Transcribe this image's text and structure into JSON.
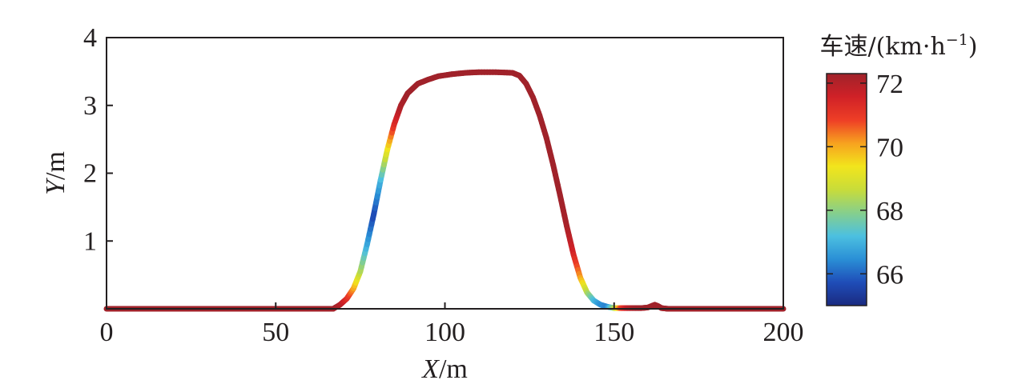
{
  "chart_data": {
    "type": "line",
    "xlabel_var": "X",
    "xlabel_unit": "/m",
    "ylabel_var": "Y",
    "ylabel_unit": "/m",
    "xlim": [
      0,
      200
    ],
    "ylim": [
      0,
      4
    ],
    "xticks": [
      0,
      50,
      100,
      150,
      200
    ],
    "yticks": [
      1,
      2,
      3,
      4
    ],
    "colorbar": {
      "title": "车速/(km·h",
      "title_sup": "−1",
      "title_end": ")",
      "range": [
        65,
        72.3
      ],
      "ticks": [
        66,
        68,
        70,
        72
      ],
      "colormap": [
        "#1a2a80",
        "#1f4db8",
        "#2a8fd6",
        "#4cc0e0",
        "#86cf8c",
        "#c8dc3a",
        "#f2e51c",
        "#f7a21f",
        "#ee3e26",
        "#d02127",
        "#a0222a"
      ]
    },
    "series": [
      {
        "x": [
          0,
          30,
          60,
          67,
          69,
          71,
          73,
          75,
          77,
          79,
          81,
          83,
          85,
          87,
          89,
          92,
          95,
          98,
          102,
          106,
          110,
          115,
          120,
          122,
          124,
          126,
          128,
          130,
          132,
          134,
          136,
          138,
          140,
          142,
          144,
          146,
          148,
          150,
          152,
          154,
          156,
          158,
          160,
          162,
          163,
          164,
          166,
          170,
          180,
          190,
          200
        ],
        "y": [
          0,
          0,
          0,
          0,
          0.06,
          0.15,
          0.3,
          0.55,
          0.95,
          1.4,
          1.9,
          2.35,
          2.72,
          3.0,
          3.18,
          3.32,
          3.38,
          3.43,
          3.46,
          3.48,
          3.49,
          3.49,
          3.48,
          3.44,
          3.32,
          3.12,
          2.85,
          2.52,
          2.12,
          1.68,
          1.22,
          0.8,
          0.46,
          0.24,
          0.12,
          0.06,
          0.03,
          0.01,
          0.01,
          0.01,
          0.01,
          0.01,
          0.02,
          0.06,
          0.04,
          0.01,
          0.0,
          0.0,
          0.0,
          0.0,
          0.0
        ],
        "speed": [
          72.3,
          72.3,
          72.3,
          72.3,
          72.1,
          71.3,
          70.2,
          68.5,
          66.9,
          65.6,
          67.0,
          69.2,
          71.2,
          72.1,
          72.3,
          72.3,
          72.3,
          72.3,
          72.3,
          72.3,
          72.3,
          72.3,
          72.3,
          72.3,
          72.3,
          72.3,
          72.3,
          72.3,
          72.3,
          72.3,
          72.2,
          71.5,
          70.2,
          68.5,
          67.2,
          66.5,
          66.3,
          68.2,
          70.8,
          71.8,
          72.2,
          72.3,
          72.3,
          72.3,
          72.3,
          72.3,
          72.3,
          72.3,
          72.3,
          72.3,
          72.3
        ]
      }
    ]
  }
}
